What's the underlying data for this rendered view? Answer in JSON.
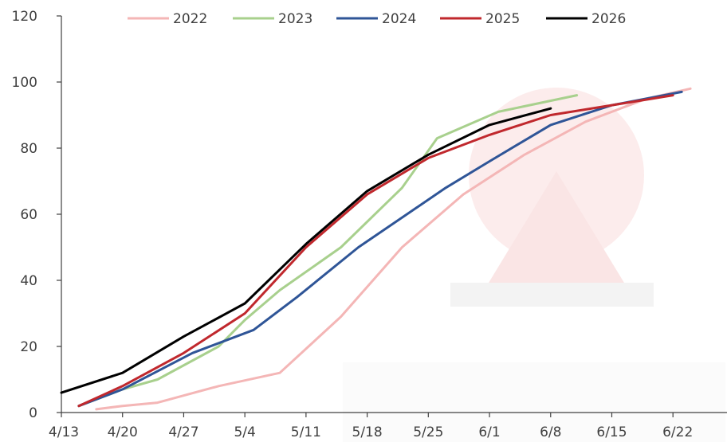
{
  "chart_data": {
    "type": "line",
    "title": "",
    "xlabel": "",
    "ylabel": "",
    "x_ticks": [
      "4/13",
      "4/20",
      "4/27",
      "5/4",
      "5/11",
      "5/18",
      "5/25",
      "6/1",
      "6/8",
      "6/15",
      "6/22"
    ],
    "y_ticks": [
      "0",
      "20",
      "40",
      "60",
      "80",
      "100",
      "120"
    ],
    "ylim": [
      0,
      120
    ],
    "grid": false,
    "legend_position": "top",
    "series": [
      {
        "name": "2022",
        "color": "#f4b6b6",
        "points": [
          {
            "x": "4/17",
            "y": 1
          },
          {
            "x": "4/20",
            "y": 2
          },
          {
            "x": "4/24",
            "y": 3
          },
          {
            "x": "5/1",
            "y": 8
          },
          {
            "x": "5/8",
            "y": 12
          },
          {
            "x": "5/15",
            "y": 29
          },
          {
            "x": "5/22",
            "y": 50
          },
          {
            "x": "5/29",
            "y": 66
          },
          {
            "x": "6/5",
            "y": 78
          },
          {
            "x": "6/12",
            "y": 88
          },
          {
            "x": "6/19",
            "y": 95
          },
          {
            "x": "6/24",
            "y": 98
          }
        ]
      },
      {
        "name": "2023",
        "color": "#a8d08d",
        "points": [
          {
            "x": "4/15",
            "y": 2
          },
          {
            "x": "4/20",
            "y": 7
          },
          {
            "x": "4/24",
            "y": 10
          },
          {
            "x": "5/1",
            "y": 20
          },
          {
            "x": "5/4",
            "y": 28
          },
          {
            "x": "5/8",
            "y": 37
          },
          {
            "x": "5/15",
            "y": 50
          },
          {
            "x": "5/22",
            "y": 68
          },
          {
            "x": "5/26",
            "y": 83
          },
          {
            "x": "6/2",
            "y": 91
          },
          {
            "x": "6/11",
            "y": 96
          }
        ]
      },
      {
        "name": "2024",
        "color": "#2f5597",
        "points": [
          {
            "x": "4/15",
            "y": 2
          },
          {
            "x": "4/20",
            "y": 7
          },
          {
            "x": "4/28",
            "y": 18
          },
          {
            "x": "5/5",
            "y": 25
          },
          {
            "x": "5/10",
            "y": 35
          },
          {
            "x": "5/17",
            "y": 50
          },
          {
            "x": "5/27",
            "y": 68
          },
          {
            "x": "6/1",
            "y": 76
          },
          {
            "x": "6/8",
            "y": 87
          },
          {
            "x": "6/15",
            "y": 93
          },
          {
            "x": "6/23",
            "y": 97
          }
        ]
      },
      {
        "name": "2025",
        "color": "#c0282d",
        "points": [
          {
            "x": "4/15",
            "y": 2
          },
          {
            "x": "4/20",
            "y": 8
          },
          {
            "x": "4/27",
            "y": 18
          },
          {
            "x": "5/4",
            "y": 30
          },
          {
            "x": "5/11",
            "y": 50
          },
          {
            "x": "5/18",
            "y": 66
          },
          {
            "x": "5/25",
            "y": 77
          },
          {
            "x": "6/1",
            "y": 84
          },
          {
            "x": "6/8",
            "y": 90
          },
          {
            "x": "6/15",
            "y": 93
          },
          {
            "x": "6/22",
            "y": 96
          }
        ]
      },
      {
        "name": "2026",
        "color": "#000000",
        "points": [
          {
            "x": "4/13",
            "y": 6
          },
          {
            "x": "4/20",
            "y": 12
          },
          {
            "x": "4/27",
            "y": 23
          },
          {
            "x": "5/4",
            "y": 33
          },
          {
            "x": "5/11",
            "y": 51
          },
          {
            "x": "5/18",
            "y": 67
          },
          {
            "x": "5/25",
            "y": 78
          },
          {
            "x": "6/1",
            "y": 87
          },
          {
            "x": "6/8",
            "y": 92
          }
        ]
      }
    ]
  }
}
